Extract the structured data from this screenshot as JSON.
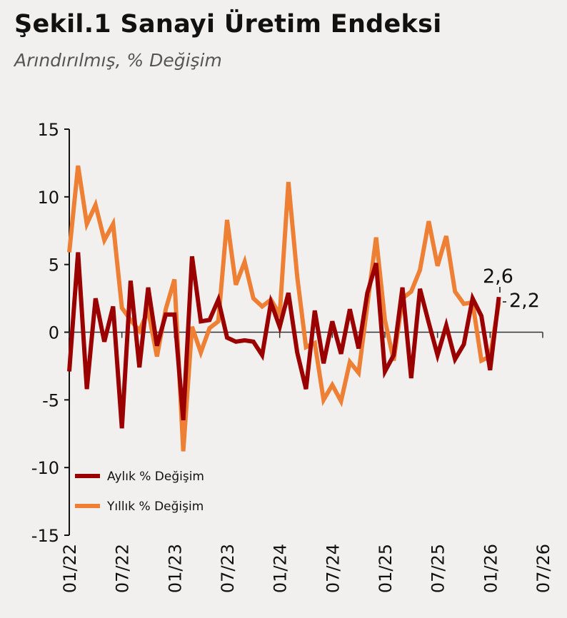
{
  "title": "Şekil.1 Sanayi Üretim Endeksi",
  "subtitle": "Arındırılmış, % Değişim",
  "colors": {
    "aylik": "#9b0000",
    "yillik": "#ee8035",
    "background": "#f2f0ef"
  },
  "chart_data": {
    "type": "line",
    "ylim": [
      -15,
      15
    ],
    "yticks": [
      "15",
      "10",
      "5",
      "0",
      "-5",
      "-10",
      "-15"
    ],
    "xticks": [
      "01/22",
      "07/22",
      "01/23",
      "07/23",
      "01/24",
      "07/24",
      "01/25",
      "07/25",
      "01/26",
      "07/26"
    ],
    "x_start": "01/22",
    "x_end": "07/26",
    "legend_position": "bottom-left",
    "grid": false,
    "series": [
      {
        "name": "Aylık % Değişim",
        "color": "#9b0000",
        "last_label": "2,6",
        "values": [
          -2.9,
          5.9,
          -4.2,
          2.5,
          -0.7,
          1.9,
          -7.1,
          3.8,
          -2.6,
          3.3,
          -1.0,
          1.3,
          1.3,
          -6.5,
          5.6,
          0.8,
          0.9,
          2.4,
          -0.4,
          -0.7,
          -0.6,
          -0.7,
          -1.7,
          2.2,
          0.4,
          2.9,
          -1.5,
          -4.2,
          1.6,
          -2.3,
          0.8,
          -1.6,
          1.7,
          -1.2,
          2.9,
          5.1,
          -2.9,
          -1.7,
          3.3,
          -3.4,
          3.2,
          0.7,
          -1.7,
          0.5,
          -2.0,
          -0.9,
          2.5,
          1.2,
          -2.8,
          2.6
        ]
      },
      {
        "name": "Yıllık % Değişim",
        "color": "#ee8035",
        "last_label": "2,2",
        "values": [
          5.9,
          12.3,
          8.0,
          9.4,
          6.8,
          8.0,
          1.8,
          0.9,
          0.1,
          1.6,
          -1.8,
          1.7,
          3.9,
          -8.8,
          0.4,
          -1.5,
          0.3,
          0.8,
          8.3,
          3.5,
          5.2,
          2.5,
          1.9,
          2.4,
          1.3,
          11.1,
          4.1,
          -1.1,
          -0.8,
          -5.0,
          -3.9,
          -5.1,
          -2.2,
          -3.0,
          2.0,
          7.0,
          0.9,
          -2.1,
          2.5,
          3.0,
          4.6,
          8.2,
          4.9,
          7.1,
          3.0,
          2.1,
          2.2,
          -2.1,
          -1.8,
          2.2
        ]
      }
    ]
  }
}
